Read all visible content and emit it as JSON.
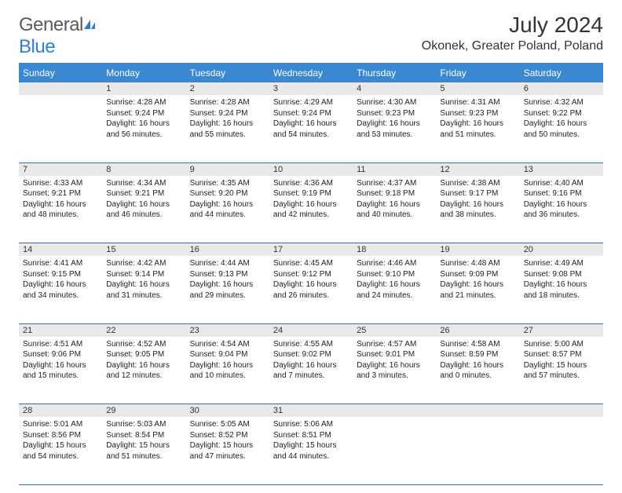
{
  "logo": {
    "part1": "General",
    "part2": "Blue"
  },
  "header": {
    "title": "July 2024",
    "location": "Okonek, Greater Poland, Poland"
  },
  "colors": {
    "header_bg": "#3a87d2",
    "header_text": "#ffffff",
    "daynum_bg": "#e9e9e9",
    "row_border": "#2c6fb5",
    "logo_gray": "#5a5a5a",
    "logo_blue": "#2f7fd0"
  },
  "days_of_week": [
    "Sunday",
    "Monday",
    "Tuesday",
    "Wednesday",
    "Thursday",
    "Friday",
    "Saturday"
  ],
  "weeks": [
    {
      "nums": [
        "",
        "1",
        "2",
        "3",
        "4",
        "5",
        "6"
      ],
      "cells": [
        null,
        {
          "sunrise": "4:28 AM",
          "sunset": "9:24 PM",
          "daylight": "16 hours and 56 minutes."
        },
        {
          "sunrise": "4:28 AM",
          "sunset": "9:24 PM",
          "daylight": "16 hours and 55 minutes."
        },
        {
          "sunrise": "4:29 AM",
          "sunset": "9:24 PM",
          "daylight": "16 hours and 54 minutes."
        },
        {
          "sunrise": "4:30 AM",
          "sunset": "9:23 PM",
          "daylight": "16 hours and 53 minutes."
        },
        {
          "sunrise": "4:31 AM",
          "sunset": "9:23 PM",
          "daylight": "16 hours and 51 minutes."
        },
        {
          "sunrise": "4:32 AM",
          "sunset": "9:22 PM",
          "daylight": "16 hours and 50 minutes."
        }
      ]
    },
    {
      "nums": [
        "7",
        "8",
        "9",
        "10",
        "11",
        "12",
        "13"
      ],
      "cells": [
        {
          "sunrise": "4:33 AM",
          "sunset": "9:21 PM",
          "daylight": "16 hours and 48 minutes."
        },
        {
          "sunrise": "4:34 AM",
          "sunset": "9:21 PM",
          "daylight": "16 hours and 46 minutes."
        },
        {
          "sunrise": "4:35 AM",
          "sunset": "9:20 PM",
          "daylight": "16 hours and 44 minutes."
        },
        {
          "sunrise": "4:36 AM",
          "sunset": "9:19 PM",
          "daylight": "16 hours and 42 minutes."
        },
        {
          "sunrise": "4:37 AM",
          "sunset": "9:18 PM",
          "daylight": "16 hours and 40 minutes."
        },
        {
          "sunrise": "4:38 AM",
          "sunset": "9:17 PM",
          "daylight": "16 hours and 38 minutes."
        },
        {
          "sunrise": "4:40 AM",
          "sunset": "9:16 PM",
          "daylight": "16 hours and 36 minutes."
        }
      ]
    },
    {
      "nums": [
        "14",
        "15",
        "16",
        "17",
        "18",
        "19",
        "20"
      ],
      "cells": [
        {
          "sunrise": "4:41 AM",
          "sunset": "9:15 PM",
          "daylight": "16 hours and 34 minutes."
        },
        {
          "sunrise": "4:42 AM",
          "sunset": "9:14 PM",
          "daylight": "16 hours and 31 minutes."
        },
        {
          "sunrise": "4:44 AM",
          "sunset": "9:13 PM",
          "daylight": "16 hours and 29 minutes."
        },
        {
          "sunrise": "4:45 AM",
          "sunset": "9:12 PM",
          "daylight": "16 hours and 26 minutes."
        },
        {
          "sunrise": "4:46 AM",
          "sunset": "9:10 PM",
          "daylight": "16 hours and 24 minutes."
        },
        {
          "sunrise": "4:48 AM",
          "sunset": "9:09 PM",
          "daylight": "16 hours and 21 minutes."
        },
        {
          "sunrise": "4:49 AM",
          "sunset": "9:08 PM",
          "daylight": "16 hours and 18 minutes."
        }
      ]
    },
    {
      "nums": [
        "21",
        "22",
        "23",
        "24",
        "25",
        "26",
        "27"
      ],
      "cells": [
        {
          "sunrise": "4:51 AM",
          "sunset": "9:06 PM",
          "daylight": "16 hours and 15 minutes."
        },
        {
          "sunrise": "4:52 AM",
          "sunset": "9:05 PM",
          "daylight": "16 hours and 12 minutes."
        },
        {
          "sunrise": "4:54 AM",
          "sunset": "9:04 PM",
          "daylight": "16 hours and 10 minutes."
        },
        {
          "sunrise": "4:55 AM",
          "sunset": "9:02 PM",
          "daylight": "16 hours and 7 minutes."
        },
        {
          "sunrise": "4:57 AM",
          "sunset": "9:01 PM",
          "daylight": "16 hours and 3 minutes."
        },
        {
          "sunrise": "4:58 AM",
          "sunset": "8:59 PM",
          "daylight": "16 hours and 0 minutes."
        },
        {
          "sunrise": "5:00 AM",
          "sunset": "8:57 PM",
          "daylight": "15 hours and 57 minutes."
        }
      ]
    },
    {
      "nums": [
        "28",
        "29",
        "30",
        "31",
        "",
        "",
        ""
      ],
      "cells": [
        {
          "sunrise": "5:01 AM",
          "sunset": "8:56 PM",
          "daylight": "15 hours and 54 minutes."
        },
        {
          "sunrise": "5:03 AM",
          "sunset": "8:54 PM",
          "daylight": "15 hours and 51 minutes."
        },
        {
          "sunrise": "5:05 AM",
          "sunset": "8:52 PM",
          "daylight": "15 hours and 47 minutes."
        },
        {
          "sunrise": "5:06 AM",
          "sunset": "8:51 PM",
          "daylight": "15 hours and 44 minutes."
        },
        null,
        null,
        null
      ]
    }
  ],
  "labels": {
    "sunrise": "Sunrise:",
    "sunset": "Sunset:",
    "daylight": "Daylight:"
  }
}
